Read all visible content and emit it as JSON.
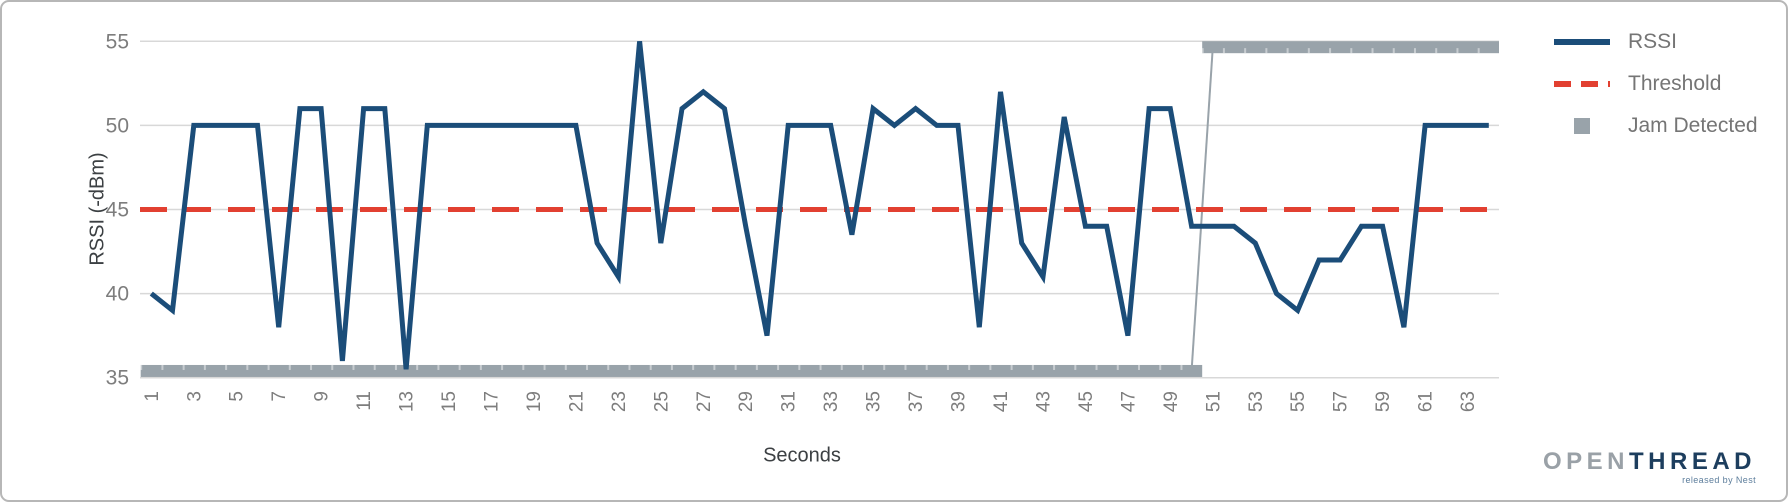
{
  "chart": {
    "y_axis_title": "RSSI (-dBm)",
    "x_axis_title": "Seconds"
  },
  "branding": {
    "logo_open": "OPEN",
    "logo_thread": "THREAD",
    "logo_sub": "released by Nest"
  },
  "chart_data": {
    "type": "line",
    "title": "",
    "xlabel": "Seconds",
    "ylabel": "RSSI (-dBm)",
    "ylim": [
      35,
      55
    ],
    "grid": true,
    "legend_position": "right",
    "x_ticks": [
      1,
      3,
      5,
      7,
      9,
      11,
      13,
      15,
      17,
      19,
      21,
      23,
      25,
      27,
      29,
      31,
      33,
      35,
      37,
      39,
      41,
      43,
      45,
      47,
      49,
      51,
      53,
      55,
      57,
      59,
      61,
      63
    ],
    "y_ticks": [
      55,
      50,
      45,
      40,
      35
    ],
    "x": [
      1,
      2,
      3,
      4,
      5,
      6,
      7,
      8,
      9,
      10,
      11,
      12,
      13,
      14,
      15,
      16,
      17,
      18,
      19,
      20,
      21,
      22,
      23,
      24,
      25,
      26,
      27,
      28,
      29,
      30,
      31,
      32,
      33,
      34,
      35,
      36,
      37,
      38,
      39,
      40,
      41,
      42,
      43,
      44,
      45,
      46,
      47,
      48,
      49,
      50,
      51,
      52,
      53,
      54,
      55,
      56,
      57,
      58,
      59,
      60,
      61,
      62,
      63,
      64
    ],
    "series": [
      {
        "name": "RSSI",
        "type": "line",
        "color": "#1b4d79",
        "values": [
          40,
          39,
          50,
          50,
          50,
          50,
          38,
          51,
          51,
          36,
          51,
          51,
          35.5,
          50,
          50,
          50,
          50,
          50,
          50,
          50,
          50,
          43,
          41,
          55,
          43,
          51,
          52,
          51,
          44,
          37.5,
          50,
          50,
          50,
          43.5,
          51,
          50,
          51,
          50,
          50,
          38,
          52,
          43,
          41,
          50.5,
          44,
          44,
          37.5,
          51,
          51,
          44,
          44,
          44,
          43,
          40,
          39,
          42,
          42,
          44,
          44,
          38,
          50,
          50,
          50,
          50
        ]
      },
      {
        "name": "Threshold",
        "type": "hline",
        "style": "dashed",
        "color": "#e24031",
        "value": 45
      },
      {
        "name": "Jam Detected",
        "type": "level-band",
        "color": "#99a3aa",
        "low_value": 35.4,
        "high_value": 54.65,
        "last_low_second": 50,
        "first_high_second": 51
      }
    ]
  }
}
